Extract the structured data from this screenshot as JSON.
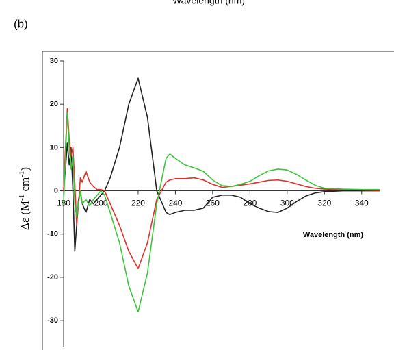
{
  "top_caption": "Wavelength (nm)",
  "panel_label": "(b)",
  "chart_data": {
    "type": "line",
    "x_label": "Wavelength (nm)",
    "y_label": [
      "Δε  (M",
      "-1",
      " cm",
      "-1",
      ")"
    ],
    "xlim": [
      180,
      350
    ],
    "ylim": [
      -36,
      30
    ],
    "xticks": [
      180,
      200,
      220,
      240,
      260,
      280,
      300,
      320,
      340
    ],
    "yticks": [
      30,
      20,
      10,
      0,
      -10,
      -20,
      -30
    ],
    "x": [
      180,
      181,
      182,
      183,
      184,
      185,
      186,
      187,
      188,
      189,
      190,
      192,
      194,
      196,
      198,
      200,
      202,
      205,
      210,
      215,
      220,
      225,
      230,
      235,
      237,
      240,
      245,
      250,
      255,
      260,
      265,
      270,
      275,
      280,
      285,
      290,
      295,
      300,
      305,
      310,
      315,
      320,
      330,
      340,
      350
    ],
    "series": [
      {
        "color": "#222222",
        "values": [
          0,
          5,
          11,
          6,
          10,
          0,
          -14,
          -8,
          -2,
          0,
          -3,
          -5,
          -2,
          -3,
          -2,
          -1,
          0,
          3,
          10,
          20,
          26,
          17,
          0,
          -5,
          -5.5,
          -5,
          -4.5,
          -4.5,
          -4,
          -1.5,
          -1,
          -1,
          -1.5,
          -3,
          -4,
          -4.8,
          -5,
          -4,
          -2.5,
          -1.2,
          -0.5,
          -0.2,
          0,
          0,
          0
        ]
      },
      {
        "color": "#e0302a",
        "values": [
          0,
          10,
          19,
          12,
          8,
          10,
          2,
          -8,
          -3,
          3,
          2,
          4.5,
          2,
          1,
          0.3,
          0.3,
          0,
          -3,
          -8,
          -14,
          -18,
          -12,
          -2,
          2,
          2.5,
          2.8,
          2.8,
          3,
          2.5,
          1.5,
          0.8,
          1,
          1.3,
          1.6,
          2,
          2.4,
          2.5,
          2.2,
          1.6,
          1,
          0.6,
          0.4,
          0.3,
          0.2,
          0.1
        ]
      },
      {
        "color": "#3cc43c",
        "values": [
          -3,
          8,
          18,
          10,
          5,
          8,
          -3,
          -6,
          -3,
          0,
          -3,
          -2,
          -3.5,
          -2,
          -1,
          0,
          -1,
          -5,
          -12,
          -22,
          -28,
          -19,
          -3,
          7.5,
          8.5,
          7.5,
          6,
          5.3,
          4.5,
          2.5,
          1.2,
          1,
          1.5,
          2.2,
          3.5,
          4.6,
          5,
          4.8,
          3.8,
          2.5,
          1.3,
          0.6,
          0.4,
          0.3,
          0.3
        ]
      }
    ]
  }
}
